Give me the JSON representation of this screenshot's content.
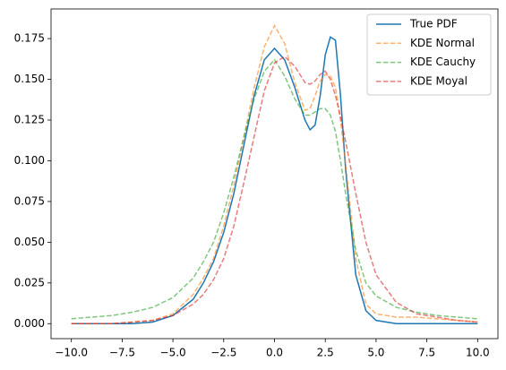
{
  "chart_data": {
    "type": "line",
    "x": [
      -10,
      -9,
      -8,
      -7,
      -6,
      -5,
      -4,
      -3.5,
      -3,
      -2.5,
      -2,
      -1.5,
      -1,
      -0.5,
      0,
      0.5,
      1,
      1.5,
      1.75,
      2,
      2.25,
      2.5,
      2.75,
      3,
      3.25,
      3.5,
      4,
      4.5,
      5,
      6,
      7,
      8,
      9,
      10
    ],
    "series": [
      {
        "name": "True PDF",
        "color": "#1f77b4",
        "linestyle": "solid",
        "alpha": 1,
        "values": [
          0,
          0,
          0,
          0,
          0.001,
          0.005,
          0.015,
          0.025,
          0.038,
          0.056,
          0.08,
          0.11,
          0.14,
          0.162,
          0.169,
          0.162,
          0.145,
          0.125,
          0.119,
          0.122,
          0.14,
          0.165,
          0.176,
          0.174,
          0.14,
          0.095,
          0.03,
          0.008,
          0.002,
          0,
          0,
          0,
          0,
          0
        ]
      },
      {
        "name": "KDE Normal",
        "color": "#ff7f0e",
        "linestyle": "dashed",
        "alpha": 0.6,
        "values": [
          0,
          0,
          0,
          0.001,
          0.002,
          0.006,
          0.018,
          0.028,
          0.04,
          0.06,
          0.085,
          0.115,
          0.145,
          0.17,
          0.183,
          0.172,
          0.148,
          0.131,
          0.132,
          0.14,
          0.149,
          0.153,
          0.152,
          0.145,
          0.125,
          0.098,
          0.04,
          0.012,
          0.006,
          0.004,
          0.004,
          0.003,
          0.002,
          0.001
        ]
      },
      {
        "name": "KDE Cauchy",
        "color": "#2ca02c",
        "linestyle": "dashed",
        "alpha": 0.6,
        "values": [
          0.003,
          0.004,
          0.005,
          0.007,
          0.01,
          0.016,
          0.028,
          0.038,
          0.05,
          0.068,
          0.09,
          0.115,
          0.138,
          0.155,
          0.162,
          0.152,
          0.138,
          0.128,
          0.128,
          0.13,
          0.132,
          0.132,
          0.128,
          0.118,
          0.1,
          0.08,
          0.045,
          0.025,
          0.017,
          0.01,
          0.007,
          0.005,
          0.004,
          0.003
        ]
      },
      {
        "name": "KDE Moyal",
        "color": "#d62728",
        "linestyle": "dashed",
        "alpha": 0.6,
        "values": [
          0,
          0,
          0,
          0.001,
          0.002,
          0.005,
          0.012,
          0.018,
          0.027,
          0.04,
          0.06,
          0.087,
          0.115,
          0.143,
          0.16,
          0.164,
          0.158,
          0.148,
          0.147,
          0.149,
          0.153,
          0.155,
          0.15,
          0.14,
          0.127,
          0.112,
          0.08,
          0.05,
          0.03,
          0.013,
          0.006,
          0.004,
          0.002,
          0.001
        ]
      }
    ],
    "xlim": [
      -11,
      11
    ],
    "ylim": [
      -0.0092,
      0.1932
    ],
    "xticks": [
      {
        "value": -10,
        "label": "−10.0"
      },
      {
        "value": -7.5,
        "label": "−7.5"
      },
      {
        "value": -5,
        "label": "−5.0"
      },
      {
        "value": -2.5,
        "label": "−2.5"
      },
      {
        "value": 0,
        "label": "0.0"
      },
      {
        "value": 2.5,
        "label": "2.5"
      },
      {
        "value": 5,
        "label": "5.0"
      },
      {
        "value": 7.5,
        "label": "7.5"
      },
      {
        "value": 10,
        "label": "10.0"
      }
    ],
    "yticks": [
      {
        "value": 0,
        "label": "0.000"
      },
      {
        "value": 0.025,
        "label": "0.025"
      },
      {
        "value": 0.05,
        "label": "0.050"
      },
      {
        "value": 0.075,
        "label": "0.075"
      },
      {
        "value": 0.1,
        "label": "0.100"
      },
      {
        "value": 0.125,
        "label": "0.125"
      },
      {
        "value": 0.15,
        "label": "0.150"
      },
      {
        "value": 0.175,
        "label": "0.175"
      }
    ],
    "legend": "upper right"
  }
}
